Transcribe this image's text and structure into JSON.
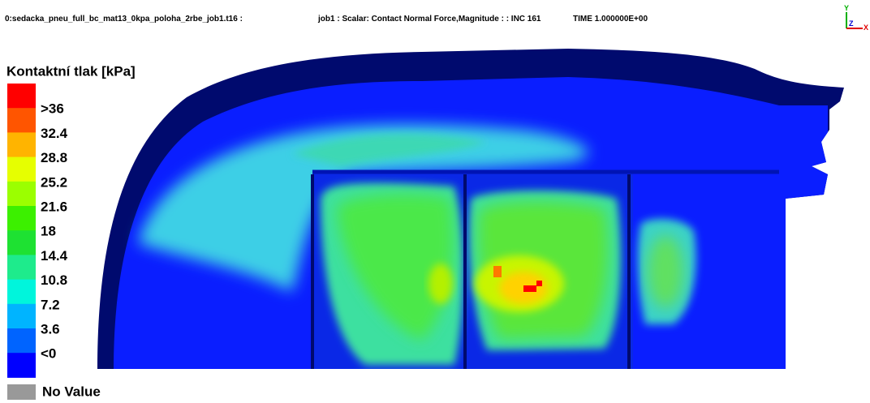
{
  "header": {
    "file": "0:sedacka_pneu_full_bc_mat13_0kpa_poloha_2rbe_job1.t16 :",
    "scalar": "job1 : Scalar: Contact Normal Force,Magnitude : : INC 161",
    "time": "TIME 1.000000E+00"
  },
  "triad": {
    "y": "Y",
    "z": "Z",
    "x": "X"
  },
  "legend": {
    "title": "Kontaktní tlak [kPa]",
    "colors": [
      "#ff0000",
      "#ff5500",
      "#ffb400",
      "#e6ff00",
      "#9bff00",
      "#3cf000",
      "#1ee132",
      "#1eeb8c",
      "#00f5dc",
      "#00b4ff",
      "#0064ff",
      "#0000ff"
    ],
    "labels": [
      ">36",
      "32.4",
      "28.8",
      "25.2",
      "21.6",
      "18",
      "14.4",
      "10.8",
      "7.2",
      "3.6",
      "<0"
    ],
    "no_value": "No Value",
    "no_value_color": "#999999"
  }
}
